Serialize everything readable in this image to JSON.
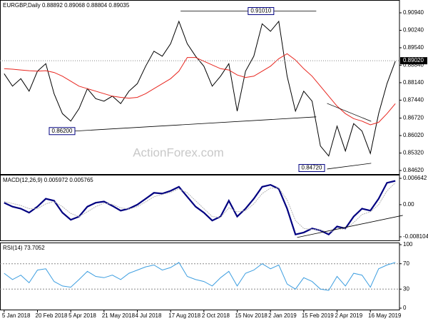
{
  "chart_data": [
    {
      "type": "line",
      "title": "EURGBP,Daily 0.88892 0.89068 0.88804 0.89035",
      "watermark": "ActionForex.com",
      "categories": [
        "5 Jan 2018",
        null,
        null,
        null,
        "20 Feb 2018",
        null,
        null,
        null,
        "5 Apr 2018",
        null,
        null,
        null,
        "21 May 2018",
        null,
        null,
        null,
        "4 Jul 2018",
        null,
        null,
        null,
        "17 Aug 2018",
        null,
        null,
        null,
        "2 Oct 2018",
        null,
        null,
        null,
        "15 Nov 2018",
        null,
        null,
        null,
        "2 Jan 2019",
        null,
        null,
        null,
        "15 Feb 2019",
        null,
        null,
        null,
        "2 Apr 2019",
        null,
        null,
        null,
        "16 May 2019",
        null,
        null,
        null
      ],
      "series": [
        {
          "color": "#000000",
          "values": [
            0.885,
            0.88,
            0.883,
            0.878,
            0.886,
            0.889,
            0.877,
            0.869,
            0.866,
            0.871,
            0.879,
            0.875,
            0.874,
            0.876,
            0.873,
            0.878,
            0.881,
            0.888,
            0.894,
            0.892,
            0.897,
            0.906,
            0.897,
            0.892,
            0.888,
            0.88,
            0.884,
            0.889,
            0.87,
            0.886,
            0.892,
            0.905,
            0.902,
            0.906,
            0.884,
            0.87,
            0.878,
            0.874,
            0.856,
            0.852,
            0.864,
            0.854,
            0.865,
            0.862,
            0.853,
            0.869,
            0.881,
            0.89
          ]
        },
        {
          "color": "#e8261f",
          "values": [
            0.887,
            0.8868,
            0.8865,
            0.8862,
            0.886,
            0.8862,
            0.8855,
            0.884,
            0.882,
            0.88,
            0.879,
            0.878,
            0.877,
            0.876,
            0.8755,
            0.8752,
            0.8755,
            0.877,
            0.879,
            0.881,
            0.883,
            0.886,
            0.8915,
            0.8915,
            0.89,
            0.8885,
            0.887,
            0.8865,
            0.8845,
            0.8835,
            0.884,
            0.886,
            0.888,
            0.891,
            0.893,
            0.8905,
            0.887,
            0.884,
            0.88,
            0.876,
            0.872,
            0.869,
            0.867,
            0.866,
            0.8645,
            0.8655,
            0.869,
            0.873
          ]
        }
      ],
      "ylim": [
        0.84449,
        0.91454
      ],
      "yticks": [
        {
          "value": 0.9094,
          "label": "0.90940"
        },
        {
          "value": 0.9024,
          "label": "0.90240"
        },
        {
          "value": 0.8954,
          "label": "0.89540"
        },
        {
          "value": 0.8884,
          "label": "0.88840"
        },
        {
          "value": 0.8814,
          "label": "0.88140"
        },
        {
          "value": 0.8744,
          "label": "0.87440"
        },
        {
          "value": 0.8672,
          "label": "0.86720"
        },
        {
          "value": 0.8602,
          "label": "0.86020"
        },
        {
          "value": 0.8532,
          "label": "0.85320"
        },
        {
          "value": 0.8462,
          "label": "0.84620"
        }
      ],
      "last": {
        "value": 0.8902,
        "label": "0.89020"
      },
      "trendlines": [
        {
          "x": [
            21.2,
            37.5
          ],
          "y": [
            0.9101,
            0.9101
          ]
        },
        {
          "x": [
            8.5,
            37.5
          ],
          "y": [
            0.862,
            0.8677
          ]
        },
        {
          "x": [
            38.8,
            44.1
          ],
          "y": [
            0.8731,
            0.8659
          ]
        },
        {
          "x": [
            38.8,
            44.1
          ],
          "y": [
            0.8468,
            0.8491
          ]
        }
      ],
      "price_labels": [
        {
          "value": 0.9101,
          "label": "0.91010",
          "x": 32.4
        },
        {
          "value": 0.862,
          "label": "0.86200",
          "x": 8.5
        },
        {
          "value": 0.8472,
          "label": "0.84720",
          "x": 38.5
        }
      ]
    },
    {
      "type": "line",
      "title": "MACD(12,26,9) 0.005972 0.005765",
      "series": [
        {
          "color": "#000080",
          "values": [
            0.0005,
            -0.0005,
            -0.001,
            -0.002,
            -0.0005,
            0.0015,
            0.001,
            -0.002,
            -0.0038,
            -0.003,
            -0.0005,
            0.0005,
            0.0008,
            -0.0003,
            -0.0015,
            -0.001,
            0.0,
            0.0015,
            0.003,
            0.0028,
            0.0035,
            0.0045,
            0.002,
            -0.0005,
            -0.002,
            -0.004,
            -0.003,
            0.001,
            -0.003,
            -0.001,
            0.0015,
            0.0045,
            0.005,
            0.004,
            -0.001,
            -0.0075,
            -0.007,
            -0.006,
            -0.0065,
            -0.0075,
            -0.0055,
            -0.006,
            -0.003,
            -0.001,
            -0.0015,
            0.0015,
            0.0055,
            0.006
          ]
        },
        {
          "color": "#b4b4b4",
          "values": [
            0.0008,
            0.0003,
            -0.0002,
            -0.001,
            -0.001,
            0.0002,
            0.0008,
            -0.0005,
            -0.0022,
            -0.003,
            -0.0018,
            -0.0005,
            0.0004,
            0.0001,
            -0.0008,
            -0.0011,
            -0.0005,
            0.0007,
            0.002,
            0.0026,
            0.0031,
            0.004,
            0.003,
            0.001,
            -0.001,
            -0.003,
            -0.0032,
            -0.0008,
            -0.0018,
            -0.0015,
            0.0002,
            0.0028,
            0.0042,
            0.0042,
            0.0012,
            -0.004,
            -0.006,
            -0.0062,
            -0.0064,
            -0.007,
            -0.0062,
            -0.0061,
            -0.0045,
            -0.0025,
            -0.0018,
            0.0,
            0.0035,
            0.0055
          ]
        }
      ],
      "ylim": [
        -0.009181,
        0.00754
      ],
      "yticks": [
        0.006642,
        {
          "value": 0,
          "label": "0.00"
        },
        -0.008104
      ],
      "trendlines": [
        {
          "x": [
            35.2,
            47.9
          ],
          "y": [
            -0.00826,
            -0.0027
          ]
        }
      ]
    },
    {
      "type": "line",
      "title": "RSI(14) 73.7052",
      "series": [
        {
          "color": "#3d9ee0",
          "values": [
            55,
            45,
            52,
            40,
            60,
            62,
            42,
            35,
            33,
            45,
            58,
            50,
            48,
            52,
            45,
            55,
            60,
            65,
            68,
            60,
            64,
            72,
            50,
            45,
            42,
            35,
            48,
            58,
            35,
            55,
            60,
            70,
            62,
            68,
            38,
            30,
            48,
            42,
            30,
            28,
            50,
            35,
            55,
            52,
            33,
            62,
            68,
            72
          ]
        }
      ],
      "ylim": [
        0,
        100
      ],
      "yticks": [
        100,
        70,
        30,
        0
      ],
      "levels": [
        70,
        30
      ]
    }
  ]
}
